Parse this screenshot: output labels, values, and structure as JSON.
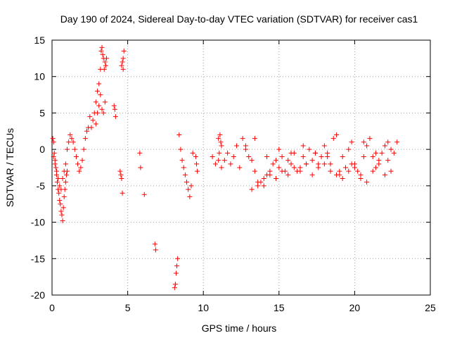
{
  "chart_data": {
    "type": "scatter",
    "title": "Day 190 of 2024, Sidereal Day-to-day VTEC variation (SDTVAR) for receiver cas1",
    "xlabel": "GPS time / hours",
    "ylabel": "SDTVAR / TECUs",
    "xlim": [
      0,
      25
    ],
    "ylim": [
      -20,
      15
    ],
    "x_ticks": [
      0,
      5,
      10,
      15,
      20,
      25
    ],
    "y_ticks": [
      -20,
      -15,
      -10,
      -5,
      0,
      5,
      10,
      15
    ],
    "grid": true,
    "marker": "+",
    "series_color": "#ff0000",
    "series": [
      {
        "name": "SDTVAR cas1",
        "x": [
          0.05,
          0.1,
          0.15,
          0.2,
          0.25,
          0.3,
          0.35,
          0.4,
          0.45,
          0.5,
          0.55,
          0.6,
          0.65,
          0.7,
          0.75,
          0.8,
          0.85,
          0.9,
          0.95,
          1.0,
          0.1,
          0.2,
          0.3,
          0.4,
          0.5,
          0.6,
          0.7,
          0.8,
          0.9,
          1.0,
          1.1,
          1.2,
          1.3,
          1.4,
          1.5,
          1.6,
          1.7,
          1.8,
          1.9,
          2.0,
          2.1,
          2.2,
          2.3,
          2.4,
          2.5,
          2.6,
          2.7,
          2.8,
          2.9,
          3.0,
          3.1,
          3.2,
          3.25,
          3.3,
          3.35,
          3.4,
          3.45,
          3.5,
          3.55,
          3.6,
          2.9,
          3.0,
          3.1,
          3.2,
          3.3,
          3.4,
          3.5,
          4.1,
          4.15,
          4.2,
          4.5,
          4.55,
          4.6,
          4.65,
          4.7,
          4.75,
          4.6,
          4.65,
          4.7,
          5.8,
          5.85,
          6.1,
          6.8,
          6.85,
          8.1,
          8.15,
          8.2,
          8.25,
          8.3,
          8.4,
          8.5,
          8.6,
          8.7,
          8.8,
          8.9,
          9.0,
          9.1,
          9.2,
          9.3,
          9.5,
          9.55,
          9.6,
          10.6,
          10.8,
          11.0,
          11.2,
          11.4,
          11.6,
          11.8,
          12.0,
          12.2,
          12.4,
          12.6,
          12.8,
          13.0,
          13.2,
          13.4,
          13.6,
          13.8,
          14.0,
          14.2,
          14.4,
          14.6,
          14.8,
          15.0,
          15.2,
          15.4,
          15.6,
          15.8,
          16.0,
          16.2,
          16.4,
          16.6,
          16.8,
          17.0,
          17.2,
          17.4,
          17.6,
          17.8,
          18.0,
          18.2,
          18.4,
          18.6,
          18.8,
          19.0,
          19.2,
          19.4,
          19.6,
          19.8,
          20.0,
          20.2,
          20.4,
          20.6,
          20.8,
          21.0,
          21.2,
          21.4,
          21.6,
          21.8,
          22.0,
          22.2,
          22.4,
          22.6,
          22.8,
          13.2,
          13.6,
          14.0,
          14.4,
          14.8,
          15.2,
          15.6,
          16.0,
          16.4,
          16.8,
          17.2,
          17.6,
          18.0,
          18.4,
          18.8,
          19.2,
          19.6,
          20.0,
          20.4,
          20.8,
          21.2,
          21.6,
          22.0,
          22.4,
          12.8,
          13.4,
          14.2,
          15.0,
          15.8,
          16.6,
          17.4,
          18.2,
          19.0,
          19.8,
          20.6,
          21.4,
          22.2,
          11.0,
          11.1,
          11.2,
          11.05,
          11.15
        ],
        "y": [
          1.5,
          1.0,
          -0.5,
          -1.5,
          -2.5,
          -3.5,
          -4.5,
          -5.5,
          -6.0,
          -7.0,
          -7.5,
          -8.5,
          -9.0,
          -9.8,
          -8.0,
          -6.5,
          -5.5,
          -4.5,
          -3.5,
          -3.0,
          -1.0,
          -2.0,
          -3.0,
          -4.0,
          -5.0,
          -5.5,
          -4.0,
          -3.0,
          -2.0,
          0.0,
          1.0,
          2.0,
          1.5,
          1.0,
          0.0,
          -1.0,
          -2.0,
          -3.0,
          -2.5,
          -1.5,
          0.0,
          1.5,
          2.5,
          3.0,
          4.5,
          3.0,
          4.0,
          5.0,
          6.5,
          8.0,
          9.0,
          11.0,
          13.5,
          14.0,
          13.0,
          12.5,
          11.0,
          12.0,
          11.5,
          12.5,
          3.5,
          5.0,
          6.0,
          7.5,
          5.5,
          5.0,
          6.5,
          6.0,
          5.5,
          4.5,
          -3.0,
          -3.5,
          -4.0,
          -6.0,
          12.5,
          13.5,
          11.5,
          12.0,
          11.0,
          -0.5,
          -2.5,
          -6.2,
          -13.0,
          -13.8,
          -19.0,
          -18.5,
          -17.0,
          -16.0,
          -15.0,
          2.0,
          0.0,
          -1.5,
          -2.5,
          -3.5,
          -4.5,
          -5.5,
          -6.5,
          -5.0,
          -0.5,
          -1.0,
          -2.0,
          -3.0,
          -1.0,
          -2.0,
          -1.5,
          -2.5,
          -1.5,
          -0.5,
          -2.0,
          -1.0,
          0.5,
          -2.5,
          1.5,
          0.0,
          -1.0,
          -1.5,
          -3.0,
          -5.0,
          -4.5,
          -4.0,
          -3.5,
          -3.0,
          -2.0,
          -1.5,
          -2.5,
          -1.0,
          -3.0,
          -1.5,
          -2.0,
          -0.5,
          -3.0,
          -2.5,
          -1.0,
          -2.0,
          0.0,
          -1.5,
          -0.5,
          -2.0,
          -1.0,
          0.5,
          -0.5,
          -2.0,
          1.5,
          2.0,
          -3.0,
          -1.0,
          -2.5,
          0.0,
          1.0,
          -2.0,
          -3.0,
          -4.0,
          -1.0,
          0.5,
          1.5,
          -1.0,
          -2.5,
          -1.5,
          -0.5,
          0.5,
          1.0,
          0.0,
          -0.5,
          1.0,
          -5.5,
          -4.5,
          -5.0,
          -3.5,
          -4.0,
          -3.0,
          -3.5,
          -2.5,
          -3.0,
          -2.0,
          -3.5,
          -2.5,
          -2.0,
          -3.0,
          -3.5,
          -4.0,
          -3.0,
          -2.5,
          -3.5,
          -4.5,
          -3.0,
          -2.0,
          -3.5,
          -3.0,
          0.5,
          1.5,
          -1.0,
          0.0,
          -0.5,
          0.5,
          -0.5,
          -1.0,
          -3.5,
          -2.0,
          1.0,
          -0.5,
          -1.5,
          1.5,
          2.0,
          0.5,
          -0.5,
          1.0
        ]
      }
    ]
  }
}
